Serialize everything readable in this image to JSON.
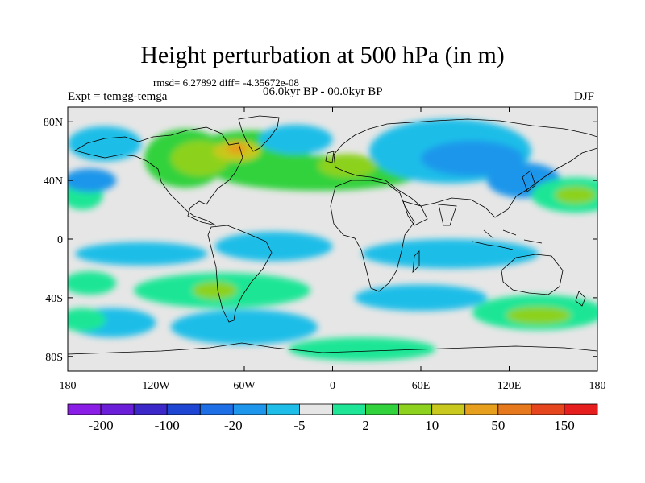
{
  "title": "Height perturbation at 500 hPa (in m)",
  "stats_line": "rmsd= 6.27892 diff= -4.35672e-08",
  "experiment": "Expt = temgg-temga",
  "period": "06.0kyr BP - 00.0kyr BP",
  "season": "DJF",
  "axes": {
    "lat_ticks": [
      {
        "value": 80,
        "label": "80N"
      },
      {
        "value": 40,
        "label": "40N"
      },
      {
        "value": 0,
        "label": "0"
      },
      {
        "value": -40,
        "label": "40S"
      },
      {
        "value": -80,
        "label": "80S"
      }
    ],
    "lon_ticks": [
      {
        "value": -180,
        "label": "180"
      },
      {
        "value": -120,
        "label": "120W"
      },
      {
        "value": -60,
        "label": "60W"
      },
      {
        "value": 0,
        "label": "0"
      },
      {
        "value": 60,
        "label": "60E"
      },
      {
        "value": 120,
        "label": "120E"
      },
      {
        "value": 180,
        "label": "180"
      }
    ],
    "lon_range": [
      -180,
      180
    ],
    "lat_range": [
      -90,
      90
    ]
  },
  "colorbar": {
    "colors": [
      "#8a1ee6",
      "#6a1ed8",
      "#3c28c8",
      "#1e46d2",
      "#1e6ee6",
      "#1e96eb",
      "#1ebee8",
      "#e6e6e6",
      "#1ee696",
      "#32d23c",
      "#8cd21e",
      "#c8c81e",
      "#e6a01e",
      "#e6781e",
      "#e6461e",
      "#e61e1e"
    ],
    "labels": [
      {
        "text": "-200",
        "after_box": 1
      },
      {
        "text": "-100",
        "after_box": 3
      },
      {
        "text": "-20",
        "after_box": 5
      },
      {
        "text": "-5",
        "after_box": 7
      },
      {
        "text": "2",
        "after_box": 9
      },
      {
        "text": "10",
        "after_box": 11
      },
      {
        "text": "50",
        "after_box": 13
      },
      {
        "text": "150",
        "after_box": 15
      }
    ]
  },
  "field": {
    "background": "#e6e6e6",
    "blobs": [
      {
        "lon": -55,
        "lat": 60,
        "rlon": 40,
        "rlat": 14,
        "color": "#32d23c"
      },
      {
        "lon": -100,
        "lat": 55,
        "rlon": 28,
        "rlat": 20,
        "color": "#32d23c"
      },
      {
        "lon": -10,
        "lat": 45,
        "rlon": 70,
        "rlat": 12,
        "color": "#32d23c"
      },
      {
        "lon": -90,
        "lat": 55,
        "rlon": 20,
        "rlat": 12,
        "color": "#8cd21e"
      },
      {
        "lon": -65,
        "lat": 60,
        "rlon": 16,
        "rlat": 7,
        "color": "#c8c81e"
      },
      {
        "lon": -65,
        "lat": 62,
        "rlon": 7,
        "rlat": 4,
        "color": "#e6a01e"
      },
      {
        "lon": 10,
        "lat": 50,
        "rlon": 20,
        "rlat": 8,
        "color": "#8cd21e"
      },
      {
        "lon": -25,
        "lat": 68,
        "rlon": 25,
        "rlat": 10,
        "color": "#1ebee8"
      },
      {
        "lon": 80,
        "lat": 60,
        "rlon": 55,
        "rlat": 22,
        "color": "#1ebee8"
      },
      {
        "lon": 95,
        "lat": 55,
        "rlon": 35,
        "rlat": 12,
        "color": "#1e96eb"
      },
      {
        "lon": 130,
        "lat": 40,
        "rlon": 25,
        "rlat": 12,
        "color": "#1e96eb"
      },
      {
        "lon": 165,
        "lat": 30,
        "rlon": 30,
        "rlat": 12,
        "color": "#1ee696"
      },
      {
        "lon": 165,
        "lat": 30,
        "rlon": 14,
        "rlat": 6,
        "color": "#8cd21e"
      },
      {
        "lon": -170,
        "lat": 30,
        "rlon": 14,
        "rlat": 10,
        "color": "#1ee696"
      },
      {
        "lon": -165,
        "lat": 40,
        "rlon": 18,
        "rlat": 8,
        "color": "#1e96eb"
      },
      {
        "lon": -155,
        "lat": 65,
        "rlon": 25,
        "rlat": 12,
        "color": "#1ebee8"
      },
      {
        "lon": -130,
        "lat": -10,
        "rlon": 45,
        "rlat": 8,
        "color": "#1ebee8"
      },
      {
        "lon": -40,
        "lat": -5,
        "rlon": 40,
        "rlat": 10,
        "color": "#1ebee8"
      },
      {
        "lon": 80,
        "lat": -10,
        "rlon": 60,
        "rlat": 10,
        "color": "#1ebee8"
      },
      {
        "lon": -75,
        "lat": -35,
        "rlon": 60,
        "rlat": 12,
        "color": "#1ee696"
      },
      {
        "lon": -80,
        "lat": -35,
        "rlon": 15,
        "rlat": 6,
        "color": "#8cd21e"
      },
      {
        "lon": -165,
        "lat": -30,
        "rlon": 18,
        "rlat": 8,
        "color": "#1ee696"
      },
      {
        "lon": -150,
        "lat": -57,
        "rlon": 30,
        "rlat": 10,
        "color": "#1ebee8"
      },
      {
        "lon": -170,
        "lat": -55,
        "rlon": 16,
        "rlat": 8,
        "color": "#1ee696"
      },
      {
        "lon": -60,
        "lat": -60,
        "rlon": 50,
        "rlat": 12,
        "color": "#1ebee8"
      },
      {
        "lon": 60,
        "lat": -40,
        "rlon": 45,
        "rlat": 9,
        "color": "#1ebee8"
      },
      {
        "lon": 140,
        "lat": -50,
        "rlon": 45,
        "rlat": 12,
        "color": "#1ee696"
      },
      {
        "lon": 140,
        "lat": -52,
        "rlon": 22,
        "rlat": 6,
        "color": "#8cd21e"
      },
      {
        "lon": 20,
        "lat": -75,
        "rlon": 50,
        "rlat": 8,
        "color": "#1ee696"
      }
    ]
  }
}
